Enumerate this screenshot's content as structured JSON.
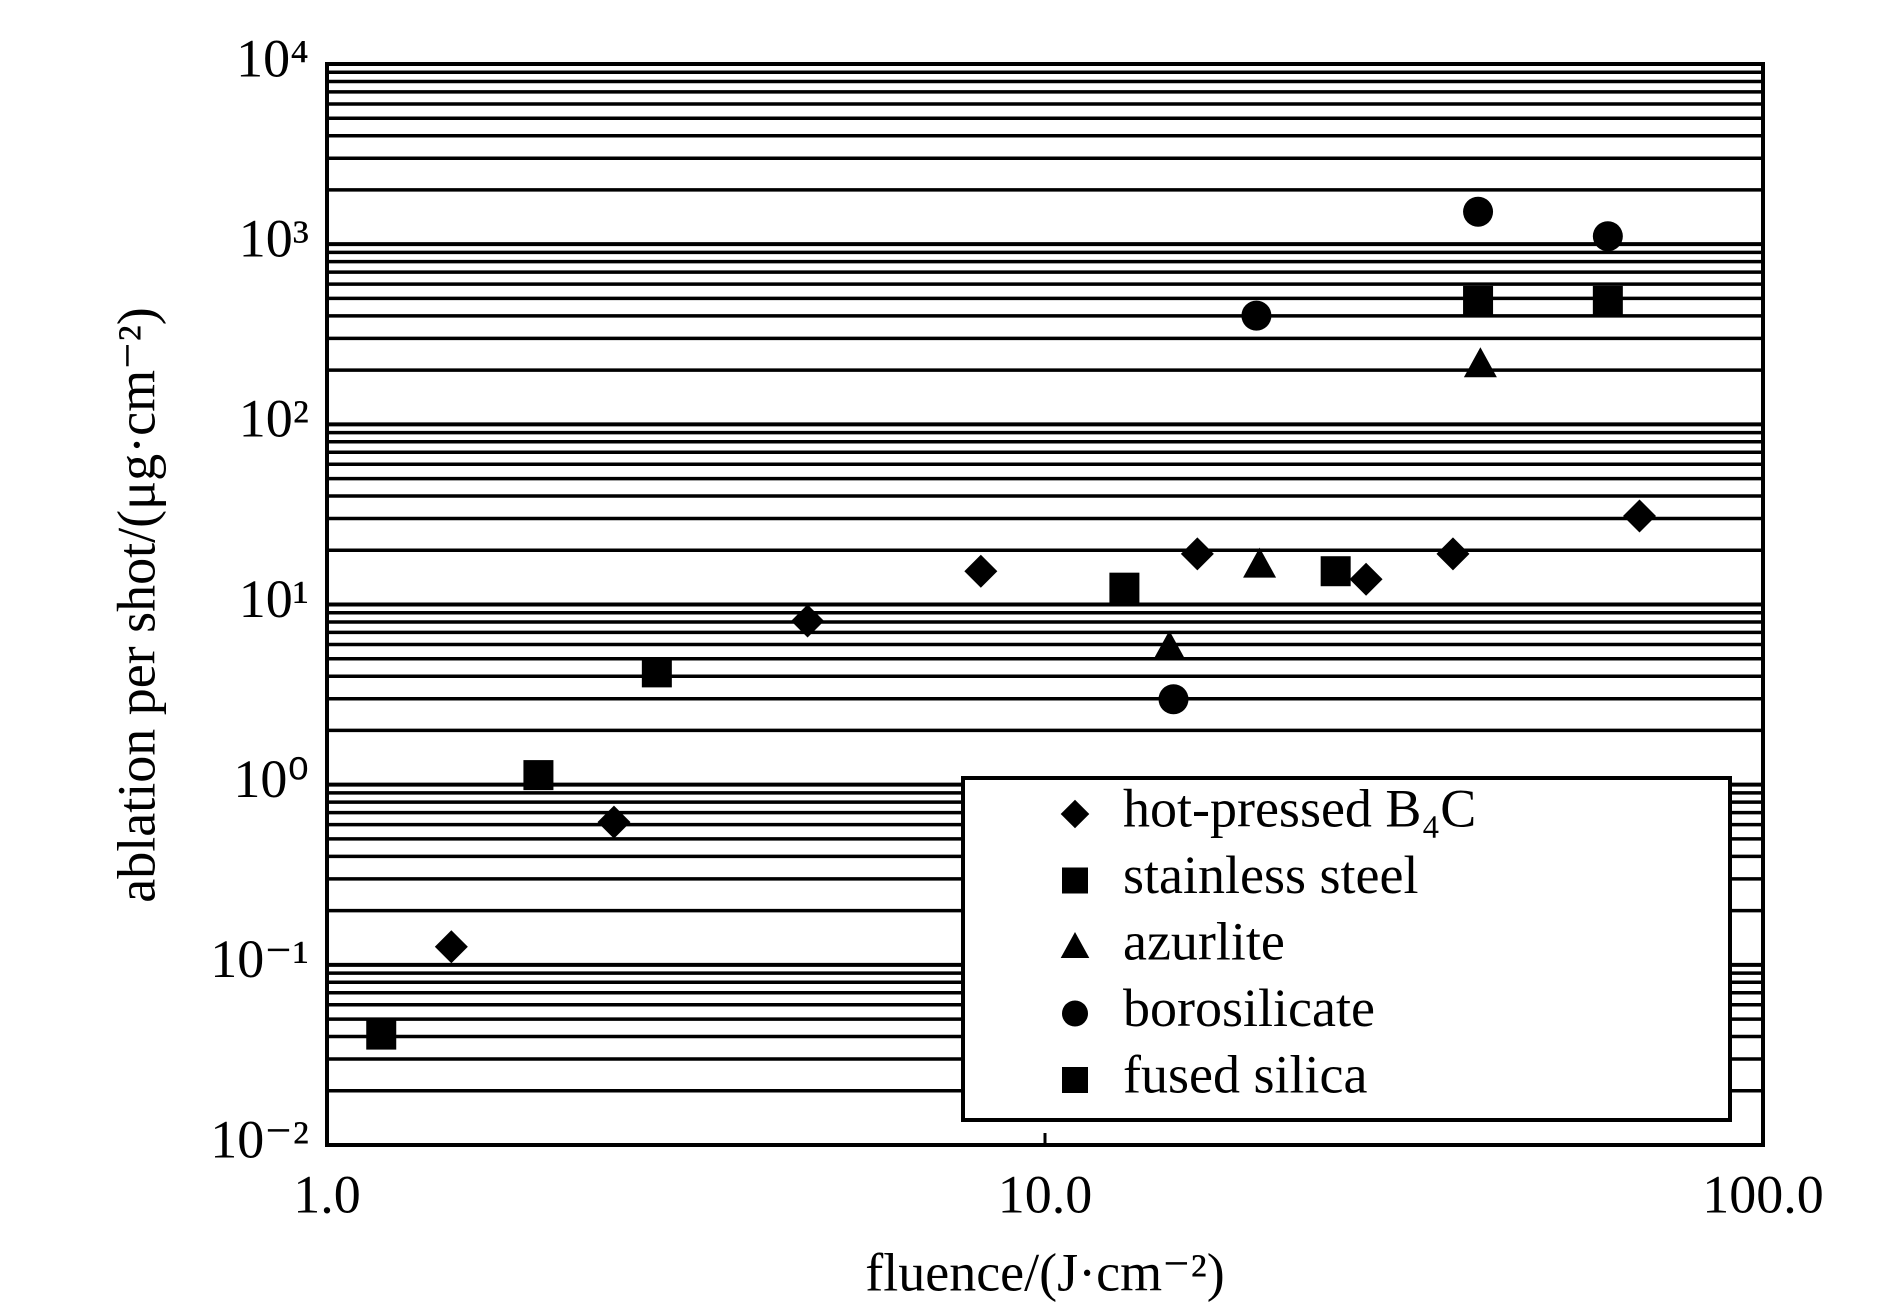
{
  "chart_data": {
    "type": "scatter",
    "xlabel": "fluence/(J·cm⁻²)",
    "ylabel": "ablation per shot/(μg·cm⁻²)",
    "xscale": "log",
    "yscale": "log",
    "xlim": [
      1,
      100
    ],
    "ylim": [
      0.01,
      10000
    ],
    "xticks": [
      {
        "value": 1,
        "label": "1.0"
      },
      {
        "value": 10,
        "label": "10.0"
      },
      {
        "value": 100,
        "label": "100.0"
      }
    ],
    "yticks": [
      {
        "value": 0.01,
        "label": "10⁻²"
      },
      {
        "value": 0.1,
        "label": "10⁻¹"
      },
      {
        "value": 1,
        "label": "10⁰"
      },
      {
        "value": 10,
        "label": "10¹"
      },
      {
        "value": 100,
        "label": "10²"
      },
      {
        "value": 1000,
        "label": "10³"
      },
      {
        "value": 10000,
        "label": "10⁴"
      }
    ],
    "grid": true,
    "legend": "lower right",
    "series": [
      {
        "name": "hot-pressed B₄C",
        "marker": "diamond",
        "color": "#000000",
        "x": [
          1.49,
          2.51,
          4.67,
          8.14,
          16.3,
          28.0,
          37.0,
          67.3
        ],
        "values": [
          0.126,
          0.62,
          8.1,
          15.3,
          19.1,
          13.8,
          19.1,
          31
        ]
      },
      {
        "name": "stainless steel",
        "marker": "square",
        "color": "#000000",
        "x": [
          12.9,
          25.4,
          40.1,
          60.8
        ],
        "values": [
          12.4,
          15.3,
          484,
          484
        ]
      },
      {
        "name": "azurlite",
        "marker": "triangle",
        "color": "#000000",
        "x": [
          14.9,
          19.9,
          40.4
        ],
        "values": [
          5.75,
          16.6,
          215
        ]
      },
      {
        "name": "borosilicate",
        "marker": "circle",
        "color": "#000000",
        "x": [
          15.1,
          19.7,
          40.1,
          60.8
        ],
        "values": [
          2.98,
          401,
          1514,
          1107
        ]
      },
      {
        "name": "fused silica",
        "marker": "square",
        "color": "#000000",
        "x": [
          1.19,
          1.97,
          2.88
        ],
        "values": [
          0.041,
          1.13,
          4.2
        ]
      }
    ]
  }
}
